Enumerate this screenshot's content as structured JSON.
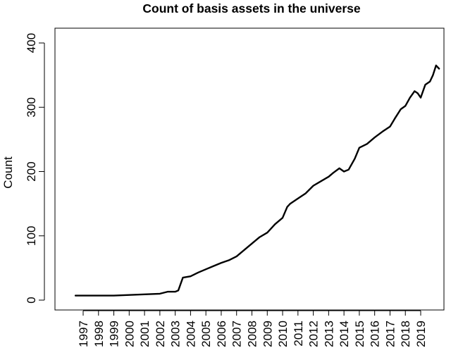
{
  "chart_data": {
    "type": "line",
    "title": "Count of basis assets in the universe",
    "xlabel": "",
    "ylabel": "Count",
    "ylim": [
      0,
      400
    ],
    "yticks": [
      0,
      100,
      200,
      300,
      400
    ],
    "xlim": [
      1996.3,
      2020.3
    ],
    "xticks": [
      "1997",
      "1998",
      "1999",
      "2000",
      "2001",
      "2002",
      "2003",
      "2004",
      "2005",
      "2006",
      "2007",
      "2008",
      "2009",
      "2010",
      "2011",
      "2012",
      "2013",
      "2014",
      "2015",
      "2016",
      "2017",
      "2018",
      "2019"
    ],
    "grid": false,
    "legend": "none",
    "series": [
      {
        "x": [
          1996.5,
          1997.0,
          1998.0,
          1999.0,
          2000.0,
          2001.0,
          2002.0,
          2002.5,
          2003.0,
          2003.2,
          2003.5,
          2004.0,
          2004.5,
          2005.0,
          2005.5,
          2006.0,
          2006.5,
          2007.0,
          2007.5,
          2008.0,
          2008.5,
          2009.0,
          2009.5,
          2010.0,
          2010.3,
          2010.5,
          2011.0,
          2011.5,
          2012.0,
          2012.5,
          2013.0,
          2013.3,
          2013.7,
          2014.0,
          2014.3,
          2014.7,
          2015.0,
          2015.5,
          2016.0,
          2016.5,
          2017.0,
          2017.3,
          2017.7,
          2018.0,
          2018.3,
          2018.6,
          2018.8,
          2019.0,
          2019.3,
          2019.6,
          2019.8,
          2020.0,
          2020.2
        ],
        "y": [
          7,
          7,
          7,
          7,
          8,
          9,
          10,
          13,
          13,
          15,
          35,
          37,
          43,
          48,
          53,
          58,
          62,
          68,
          78,
          88,
          98,
          105,
          118,
          128,
          145,
          150,
          158,
          166,
          178,
          185,
          192,
          198,
          205,
          200,
          203,
          220,
          237,
          243,
          253,
          262,
          270,
          282,
          297,
          302,
          315,
          325,
          322,
          315,
          335,
          340,
          350,
          365,
          360
        ]
      }
    ]
  }
}
